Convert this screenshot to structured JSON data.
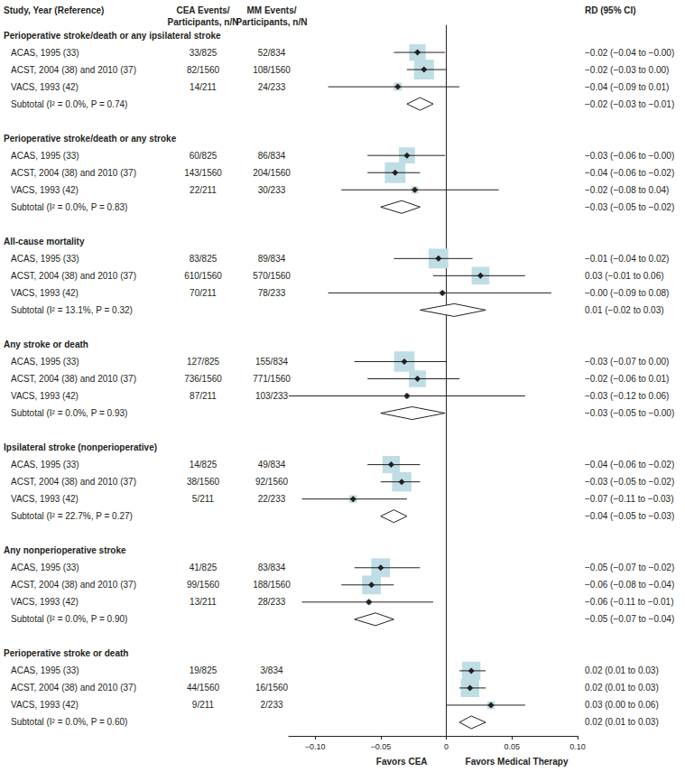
{
  "chart_data": {
    "type": "forest",
    "color": "#bfdde4",
    "header": {
      "study": "Study, Year (Reference)",
      "cea": [
        "CEA Events/",
        "Participants, n/N"
      ],
      "mm": [
        "MM Events/",
        "Participants, n/N"
      ],
      "rd": "RD (95% CI)"
    },
    "xlim": [
      -0.12,
      0.1
    ],
    "xticks": [
      {
        "value": -0.1,
        "label": "−0.10"
      },
      {
        "value": -0.05,
        "label": "−0.05"
      },
      0,
      {
        "value": 0.05,
        "label": "0.05"
      },
      {
        "value": 0.1,
        "label": "0.10"
      }
    ],
    "x_labels": {
      "left": "Favors CEA",
      "right": "Favors Medical Therapy"
    },
    "groups": [
      {
        "title": "Perioperative stroke/death or any ipsilateral stroke",
        "studies": [
          {
            "name": "ACAS, 1995 (33)",
            "cea": "33/825",
            "mm": "52/834",
            "rd": -0.022,
            "lo": -0.04,
            "hi": -0.001,
            "weight": 37,
            "label": "−0.02 (−0.04 to −0.00)"
          },
          {
            "name": "ACST, 2004 (38) and 2010 (37)",
            "cea": "82/1560",
            "mm": "108/1560",
            "rd": -0.017,
            "lo": -0.03,
            "hi": 0,
            "weight": 54,
            "label": "−0.02 (−0.03 to 0.00)"
          },
          {
            "name": "VACS, 1993 (42)",
            "cea": "14/211",
            "mm": "24/233",
            "rd": -0.037,
            "lo": -0.09,
            "hi": 0.01,
            "weight": 9,
            "label": "−0.04 (−0.09 to 0.01)"
          }
        ],
        "subtotal": {
          "name": "Subtotal (I² = 0.0%, P = 0.74)",
          "rd": -0.02,
          "lo": -0.03,
          "hi": -0.01,
          "label": "−0.02 (−0.03 to −0.01)"
        }
      },
      {
        "title": "Perioperative stroke/death or any stroke",
        "studies": [
          {
            "name": "ACAS, 1995 (33)",
            "cea": "60/825",
            "mm": "86/834",
            "rd": -0.03,
            "lo": -0.06,
            "hi": -0.001,
            "weight": 35,
            "label": "−0.03 (−0.06 to −0.00)"
          },
          {
            "name": "ACST, 2004 (38) and 2010 (37)",
            "cea": "143/1560",
            "mm": "204/1560",
            "rd": -0.039,
            "lo": -0.06,
            "hi": -0.02,
            "weight": 58,
            "label": "−0.04 (−0.06 to −0.02)"
          },
          {
            "name": "VACS, 1993 (42)",
            "cea": "22/211",
            "mm": "30/233",
            "rd": -0.024,
            "lo": -0.08,
            "hi": 0.04,
            "weight": 7,
            "label": "−0.02 (−0.08 to 0.04)"
          }
        ],
        "subtotal": {
          "name": "Subtotal (I² = 0.0%, P = 0.83)",
          "rd": -0.034,
          "lo": -0.05,
          "hi": -0.02,
          "label": "−0.03 (−0.05 to −0.02)"
        }
      },
      {
        "title": "All-cause mortality",
        "studies": [
          {
            "name": "ACAS, 1995 (33)",
            "cea": "83/825",
            "mm": "89/834",
            "rd": -0.006,
            "lo": -0.04,
            "hi": 0.02,
            "weight": 53,
            "label": "−0.01 (−0.04 to 0.02)"
          },
          {
            "name": "ACST, 2004 (38) and 2010 (37)",
            "cea": "610/1560",
            "mm": "570/1560",
            "rd": 0.026,
            "lo": -0.01,
            "hi": 0.06,
            "weight": 43,
            "label": "0.03 (−0.01 to 0.06)"
          },
          {
            "name": "VACS, 1993 (42)",
            "cea": "70/211",
            "mm": "78/233",
            "rd": -0.003,
            "lo": -0.09,
            "hi": 0.08,
            "weight": 4,
            "label": "−0.00 (−0.09 to 0.08)"
          }
        ],
        "subtotal": {
          "name": "Subtotal (I² = 13.1%, P = 0.32)",
          "rd": 0.006,
          "lo": -0.02,
          "hi": 0.03,
          "label": "0.01 (−0.02 to 0.03)"
        }
      },
      {
        "title": "Any stroke or death",
        "studies": [
          {
            "name": "ACAS, 1995 (33)",
            "cea": "127/825",
            "mm": "155/834",
            "rd": -0.032,
            "lo": -0.07,
            "hi": 0,
            "weight": 57,
            "label": "−0.03 (−0.07 to 0.00)"
          },
          {
            "name": "ACST, 2004 (38) and 2010 (37)",
            "cea": "736/1560",
            "mm": "771/1560",
            "rd": -0.022,
            "lo": -0.06,
            "hi": 0.01,
            "weight": 39,
            "label": "−0.02 (−0.06 to 0.01)"
          },
          {
            "name": "VACS, 1993 (42)",
            "cea": "87/211",
            "mm": "103/233",
            "rd": -0.03,
            "lo": -0.12,
            "hi": 0.06,
            "weight": 4,
            "label": "−0.03 (−0.12 to 0.06)"
          }
        ],
        "subtotal": {
          "name": "Subtotal (I² = 0.0%, P = 0.93)",
          "rd": -0.026,
          "lo": -0.05,
          "hi": -0.001,
          "label": "−0.03 (−0.05 to −0.00)"
        }
      },
      {
        "title": "Ipsilateral stroke (nonperioperative)",
        "studies": [
          {
            "name": "ACAS, 1995 (33)",
            "cea": "14/825",
            "mm": "49/834",
            "rd": -0.042,
            "lo": -0.06,
            "hi": -0.02,
            "weight": 41,
            "label": "−0.04 (−0.06 to −0.02)"
          },
          {
            "name": "ACST, 2004 (38) and 2010 (37)",
            "cea": "38/1560",
            "mm": "92/1560",
            "rd": -0.034,
            "lo": -0.05,
            "hi": -0.02,
            "weight": 51,
            "label": "−0.03 (−0.05 to −0.02)"
          },
          {
            "name": "VACS, 1993 (42)",
            "cea": "5/211",
            "mm": "22/233",
            "rd": -0.071,
            "lo": -0.11,
            "hi": -0.03,
            "weight": 8,
            "label": "−0.07 (−0.11 to −0.03)"
          }
        ],
        "subtotal": {
          "name": "Subtotal (I² = 22.7%, P = 0.27)",
          "rd": -0.04,
          "lo": -0.05,
          "hi": -0.03,
          "label": "−0.04 (−0.05 to −0.03)"
        }
      },
      {
        "title": "Any nonperioperative stroke",
        "studies": [
          {
            "name": "ACAS, 1995 (33)",
            "cea": "41/825",
            "mm": "83/834",
            "rd": -0.05,
            "lo": -0.07,
            "hi": -0.02,
            "weight": 48,
            "label": "−0.05 (−0.07 to −0.02)"
          },
          {
            "name": "ACST, 2004 (38) and 2010 (37)",
            "cea": "99/1560",
            "mm": "188/1560",
            "rd": -0.057,
            "lo": -0.08,
            "hi": -0.04,
            "weight": 48,
            "label": "−0.06 (−0.08 to −0.04)"
          },
          {
            "name": "VACS, 1993 (42)",
            "cea": "13/211",
            "mm": "28/233",
            "rd": -0.059,
            "lo": -0.11,
            "hi": -0.01,
            "weight": 4,
            "label": "−0.06 (−0.11 to −0.01)"
          }
        ],
        "subtotal": {
          "name": "Subtotal (I² = 0.0%, P = 0.90)",
          "rd": -0.054,
          "lo": -0.07,
          "hi": -0.04,
          "label": "−0.05 (−0.07 to −0.04)"
        }
      },
      {
        "title": "Perioperative stroke or death",
        "studies": [
          {
            "name": "ACAS, 1995 (33)",
            "cea": "19/825",
            "mm": "3/834",
            "rd": 0.019,
            "lo": 0.01,
            "hi": 0.03,
            "weight": 46,
            "label": "0.02 (0.01 to 0.03)"
          },
          {
            "name": "ACST, 2004 (38) and 2010 (37)",
            "cea": "44/1560",
            "mm": "16/1560",
            "rd": 0.018,
            "lo": 0.01,
            "hi": 0.03,
            "weight": 46,
            "label": "0.02 (0.01 to 0.03)"
          },
          {
            "name": "VACS, 1993 (42)",
            "cea": "9/211",
            "mm": "2/233",
            "rd": 0.034,
            "lo": 0,
            "hi": 0.06,
            "weight": 8,
            "label": "0.03 (0.00 to 0.06)"
          }
        ],
        "subtotal": {
          "name": "Subtotal (I² = 0.0%, P = 0.60)",
          "rd": 0.019,
          "lo": 0.01,
          "hi": 0.03,
          "label": "0.02 (0.01 to 0.03)"
        }
      }
    ]
  }
}
